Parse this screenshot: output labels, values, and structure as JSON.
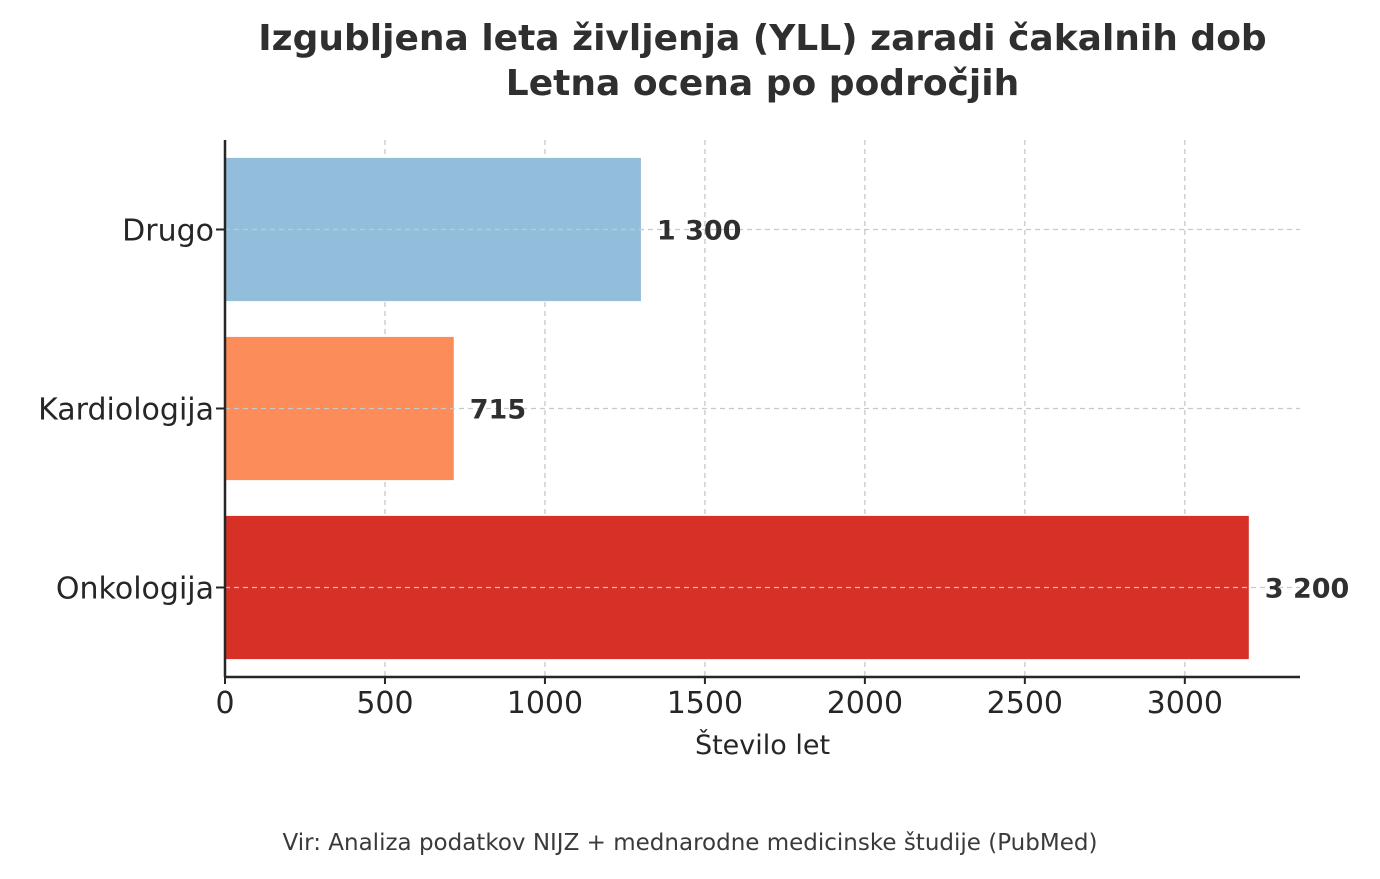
{
  "title_line1": "Izgubljena leta življenja (YLL) zaradi čakalnih dob",
  "title_line2": "Letna ocena po področjih",
  "source": "Vir: Analiza podatkov NIJZ + mednarodne medicinske študije (PubMed)",
  "chart_data": {
    "type": "bar",
    "orientation": "horizontal",
    "categories": [
      "Drugo",
      "Kardiologija",
      "Onkologija"
    ],
    "values": [
      1300,
      715,
      3200
    ],
    "value_labels": [
      "1 300",
      "715",
      "3 200"
    ],
    "colors": [
      "#92bddb",
      "#fc8c59",
      "#d73027"
    ],
    "xlabel": "Število let",
    "ylabel": "",
    "xlim": [
      0,
      3360
    ],
    "xticks": [
      0,
      500,
      1000,
      1500,
      2000,
      2500,
      3000
    ],
    "grid": true
  }
}
